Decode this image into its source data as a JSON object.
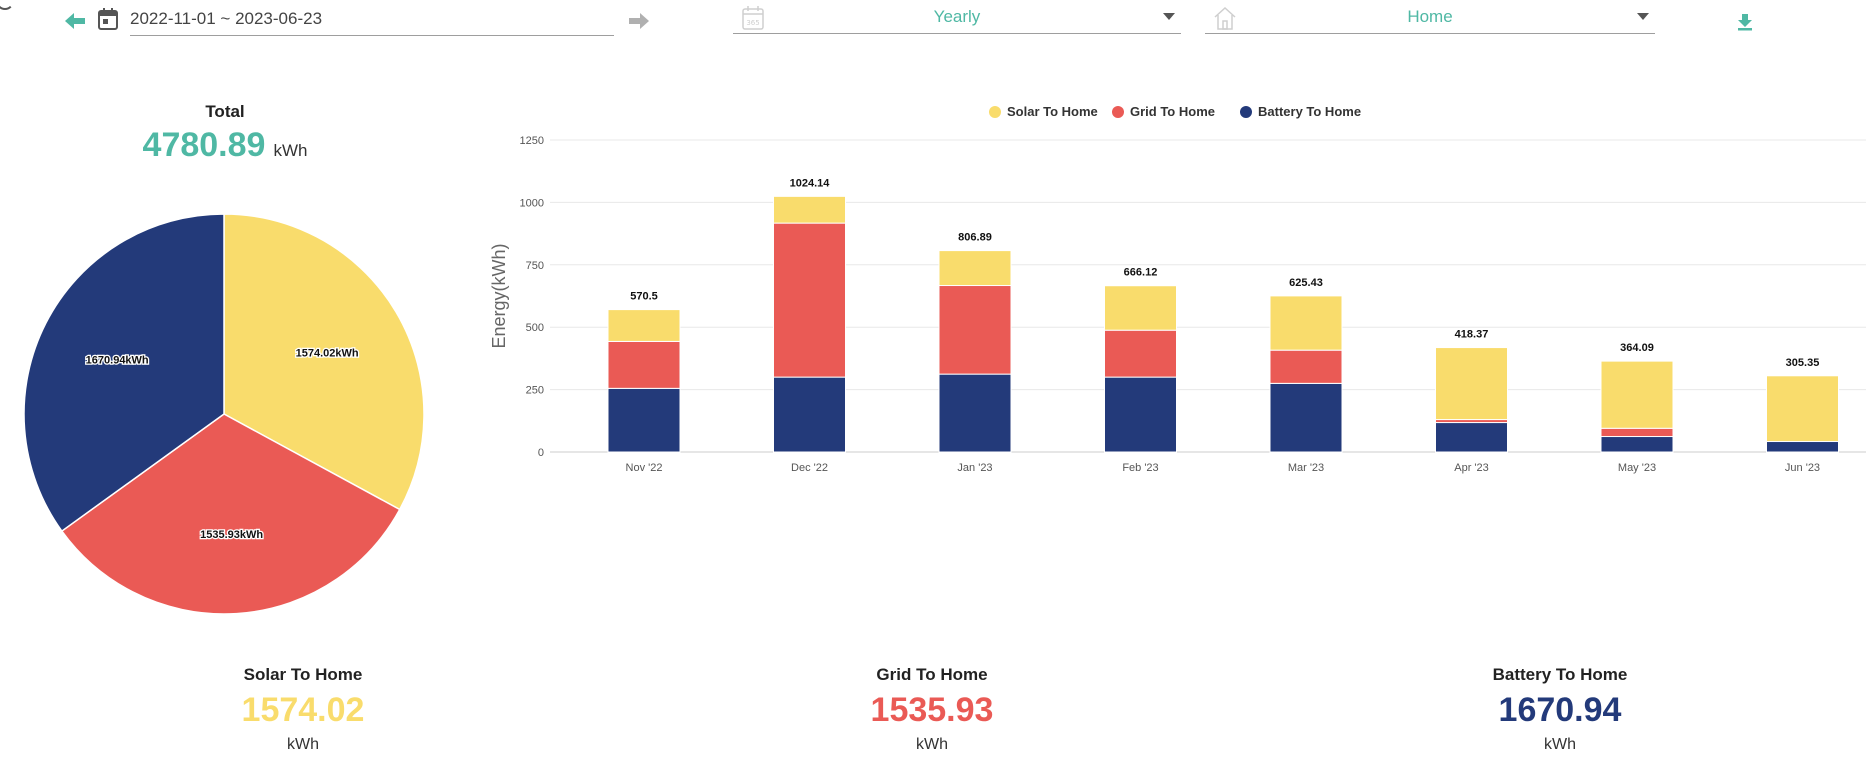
{
  "toolbar": {
    "date_range": "2022-11-01 ~ 2023-06-23",
    "period_select": {
      "value": "Yearly",
      "icon": "calendar-365-icon"
    },
    "site_select": {
      "value": "Home",
      "icon": "home-icon"
    },
    "icons": {
      "prev": "arrow-left-icon",
      "next": "arrow-right-icon",
      "calendar": "calendar-icon",
      "download": "download-icon"
    }
  },
  "colors": {
    "accent": "#4fb8a4",
    "solar": "#f9dc6c",
    "grid": "#ea5a55",
    "battery": "#233a7a"
  },
  "total": {
    "label": "Total",
    "value": "4780.89",
    "unit": "kWh"
  },
  "summary": [
    {
      "key": "solar",
      "label": "Solar To Home",
      "value": "1574.02",
      "unit": "kWh"
    },
    {
      "key": "grid",
      "label": "Grid To Home",
      "value": "1535.93",
      "unit": "kWh"
    },
    {
      "key": "battery",
      "label": "Battery To Home",
      "value": "1670.94",
      "unit": "kWh"
    }
  ],
  "chart_data": [
    {
      "type": "pie",
      "slices": [
        {
          "name": "Solar To Home",
          "value": 1574.02,
          "label": "1574.02kWh"
        },
        {
          "name": "Grid To Home",
          "value": 1535.93,
          "label": "1535.93kWh"
        },
        {
          "name": "Battery To Home",
          "value": 1670.94,
          "label": "1670.94kWh"
        }
      ]
    },
    {
      "type": "bar",
      "stacked": true,
      "ylabel": "Energy(kWh)",
      "ylim": [
        0,
        1250
      ],
      "yticks": [
        0,
        250,
        500,
        750,
        1000,
        1250
      ],
      "legend_position": "top",
      "categories": [
        "Nov '22",
        "Dec '22",
        "Jan '23",
        "Feb '23",
        "Mar '23",
        "Apr '23",
        "May '23",
        "Jun '23"
      ],
      "series": [
        {
          "name": "Battery To Home",
          "values": [
            255,
            300,
            312,
            300,
            275,
            118,
            62,
            42
          ]
        },
        {
          "name": "Grid To Home",
          "values": [
            188,
            617,
            355,
            188,
            133,
            12,
            33,
            0
          ]
        },
        {
          "name": "Solar To Home",
          "values": [
            127.5,
            107.14,
            139.89,
            178.12,
            217.43,
            288.37,
            269.09,
            263.35
          ]
        }
      ],
      "totals": [
        "570.5",
        "1024.14",
        "806.89",
        "666.12",
        "625.43",
        "418.37",
        "364.09",
        "305.35"
      ]
    }
  ]
}
